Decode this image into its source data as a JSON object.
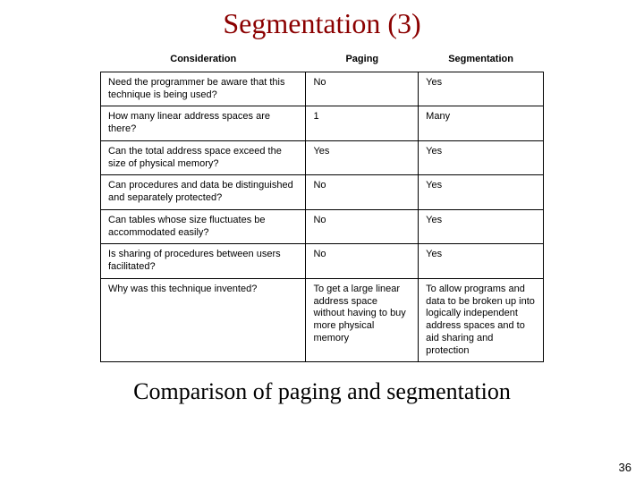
{
  "title": "Segmentation (3)",
  "caption": "Comparison of paging and segmentation",
  "page_number": "36",
  "table": {
    "headers": [
      "Consideration",
      "Paging",
      "Segmentation"
    ],
    "rows": [
      [
        "Need the programmer be aware that this technique is being used?",
        "No",
        "Yes"
      ],
      [
        "How many linear address spaces are there?",
        "1",
        "Many"
      ],
      [
        "Can the total address space exceed the size of physical memory?",
        "Yes",
        "Yes"
      ],
      [
        "Can procedures and data be distinguished and separately protected?",
        "No",
        "Yes"
      ],
      [
        "Can tables whose size fluctuates be accommodated easily?",
        "No",
        "Yes"
      ],
      [
        "Is sharing of procedures between users facilitated?",
        "No",
        "Yes"
      ],
      [
        "Why was this technique invented?",
        "To get a large linear address space without having to buy more physical memory",
        "To allow programs and data to be broken up into logically independent address spaces and to aid sharing and protection"
      ]
    ]
  },
  "colors": {
    "title_color": "#8b0000",
    "border_color": "#000000",
    "text_color": "#000000",
    "background": "#ffffff"
  },
  "fonts": {
    "title_family": "Times New Roman",
    "title_size_pt": 24,
    "body_family": "Arial",
    "body_size_pt": 8,
    "caption_family": "Times New Roman",
    "caption_size_pt": 20
  }
}
